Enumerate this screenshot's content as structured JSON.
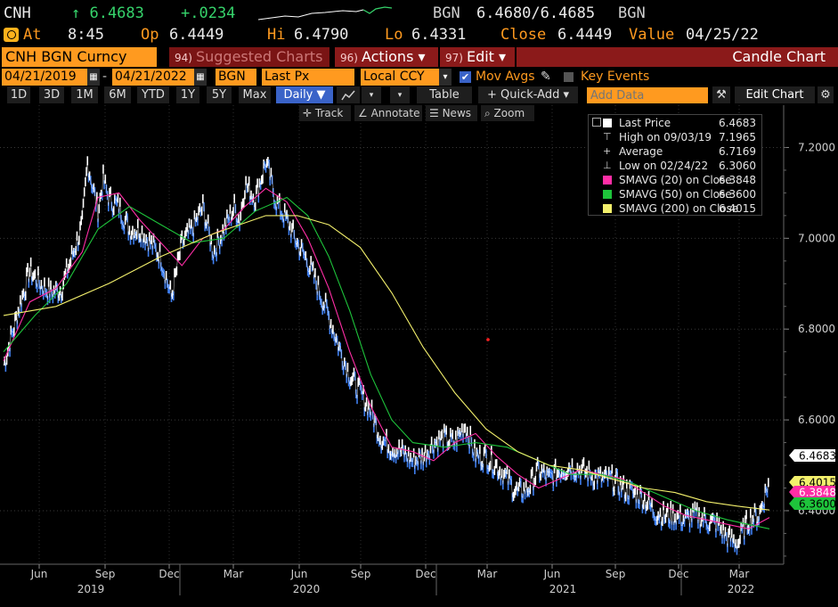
{
  "ticker": {
    "symbol": "CNH",
    "last": "↑ 6.4683",
    "change": "+.0234",
    "bid_ask_label": "BGN",
    "bid_ask": "6.4680/6.4685",
    "bid_ask_source": "BGN"
  },
  "quote": {
    "time_label": "At",
    "time": "8:45",
    "open_label": "Op",
    "open": "6.4449",
    "high_label": "Hi",
    "high": "6.4790",
    "low_label": "Lo",
    "low": "6.4331",
    "close_label": "Close",
    "close": "6.4449",
    "value_label": "Value",
    "value_date": "04/25/22"
  },
  "toolbar": {
    "security": "CNH BGN Curncy",
    "suggested_num": "94)",
    "suggested": "Suggested Charts",
    "actions_num": "96)",
    "actions": "Actions ▾",
    "edit_num": "97)",
    "edit": "Edit ▾",
    "chart_type": "Candle Chart"
  },
  "settings": {
    "start_date": "04/21/2019",
    "dash": "-",
    "end_date": "04/21/2022",
    "source": "BGN",
    "field": "Last Px",
    "currency": "Local CCY",
    "mov_avgs": "Mov Avgs",
    "key_events": "Key Events"
  },
  "periods": [
    "1D",
    "3D",
    "1M",
    "6M",
    "YTD",
    "1Y",
    "5Y",
    "Max"
  ],
  "frequency": "Daily ▼",
  "table_label": "Table",
  "quick_add": "+ Quick-Add ▾",
  "add_data_placeholder": "Add Data",
  "edit_chart": "Edit Chart",
  "tools": [
    "Track",
    "Annotate",
    "News",
    "Zoom"
  ],
  "colors": {
    "accent_orange": "#ff9a1f",
    "bar_red": "#8b1a1a",
    "price_white": "#ffffff",
    "price_blue": "#3f7ff0",
    "sma20": "#ff2ea6",
    "sma50": "#1ec43b",
    "sma200": "#f3f06c"
  },
  "legend": [
    {
      "label": "Last Price",
      "value": "6.4683",
      "swatch": "#ffffff"
    },
    {
      "label": "High on 09/03/19",
      "value": "7.1965",
      "glyph": "⊤"
    },
    {
      "label": "Average",
      "value": "6.7169",
      "glyph": "+"
    },
    {
      "label": "Low on 02/24/22",
      "value": "6.3060",
      "glyph": "⊥"
    },
    {
      "label": "SMAVG (20)  on Close",
      "value": "6.3848",
      "swatch": "#ff2ea6"
    },
    {
      "label": "SMAVG (50)  on Close",
      "value": "6.3600",
      "swatch": "#1ec43b"
    },
    {
      "label": "SMAVG (200)  on Close",
      "value": "6.4015",
      "swatch": "#f3f06c"
    }
  ],
  "chart_data": {
    "type": "line",
    "y_ticks": [
      "7.2000",
      "7.0000",
      "6.8000",
      "6.6000",
      "6.4000"
    ],
    "ylim": [
      6.29,
      7.25
    ],
    "x_months": [
      "Jun",
      "Sep",
      "Dec",
      "Mar",
      "Jun",
      "Sep",
      "Dec",
      "Mar",
      "Jun",
      "Sep",
      "Dec",
      "Mar"
    ],
    "x_years": [
      "2019",
      "2020",
      "2021",
      "2022"
    ],
    "last_value_labels": [
      {
        "text": "6.4683",
        "value": 6.4683,
        "bg": "#ffffff",
        "fg": "#000000"
      },
      {
        "text": "6.4015",
        "value": 6.4015,
        "bg": "#f3f06c",
        "fg": "#000000"
      },
      {
        "text": "6.3848",
        "value": 6.3848,
        "bg": "#ff2ea6",
        "fg": "#ffffff"
      },
      {
        "text": "6.3600",
        "value": 6.36,
        "bg": "#1ec43b",
        "fg": "#000000"
      }
    ],
    "series": [
      {
        "name": "Last Price",
        "color": "#ffffff",
        "x": [
          0,
          3,
          5,
          7,
          9,
          11,
          13,
          15,
          16,
          18,
          19,
          20,
          22,
          24,
          26,
          28,
          30,
          32,
          34,
          36,
          38,
          40,
          42,
          44,
          45,
          46,
          48,
          50,
          52,
          54,
          56,
          58,
          60,
          62,
          64,
          66,
          68,
          70,
          72,
          74,
          76,
          78,
          80,
          82,
          84,
          86,
          88,
          90,
          92,
          94,
          96,
          98,
          100,
          102,
          104,
          106,
          108,
          110,
          112,
          114,
          116,
          118,
          120,
          122,
          124,
          126,
          128,
          130,
          132,
          134,
          136,
          138,
          140,
          142,
          144,
          146
        ],
        "y": [
          6.72,
          6.85,
          6.93,
          6.9,
          6.88,
          6.89,
          6.96,
          7.03,
          7.17,
          7.06,
          7.13,
          7.09,
          7.07,
          7.02,
          7.02,
          6.99,
          6.96,
          6.87,
          6.99,
          7.02,
          7.07,
          6.97,
          7.02,
          7.07,
          7.04,
          7.12,
          7.09,
          7.17,
          7.08,
          7.04,
          6.99,
          6.95,
          6.89,
          6.83,
          6.76,
          6.7,
          6.66,
          6.62,
          6.56,
          6.54,
          6.53,
          6.51,
          6.52,
          6.55,
          6.56,
          6.55,
          6.59,
          6.52,
          6.52,
          6.5,
          6.47,
          6.44,
          6.45,
          6.49,
          6.47,
          6.49,
          6.5,
          6.49,
          6.48,
          6.47,
          6.47,
          6.45,
          6.44,
          6.43,
          6.4,
          6.39,
          6.39,
          6.38,
          6.39,
          6.38,
          6.37,
          6.34,
          6.33,
          6.38,
          6.39,
          6.47
        ]
      },
      {
        "name": "SMAVG (20)",
        "color": "#ff2ea6",
        "x": [
          0,
          5,
          10,
          15,
          18,
          22,
          26,
          30,
          34,
          38,
          42,
          46,
          50,
          54,
          58,
          62,
          66,
          70,
          74,
          78,
          82,
          86,
          90,
          94,
          98,
          102,
          106,
          110,
          114,
          118,
          122,
          126,
          130,
          134,
          138,
          142,
          146
        ],
        "y": [
          6.73,
          6.86,
          6.89,
          6.97,
          7.09,
          7.1,
          7.04,
          6.99,
          6.94,
          7.0,
          7.02,
          7.07,
          7.11,
          7.08,
          7.0,
          6.89,
          6.75,
          6.63,
          6.54,
          6.53,
          6.51,
          6.55,
          6.57,
          6.52,
          6.48,
          6.45,
          6.47,
          6.49,
          6.48,
          6.47,
          6.44,
          6.41,
          6.39,
          6.38,
          6.37,
          6.36,
          6.385
        ]
      },
      {
        "name": "SMAVG (50)",
        "color": "#1ec43b",
        "x": [
          0,
          6,
          12,
          18,
          24,
          30,
          36,
          42,
          48,
          54,
          58,
          62,
          66,
          70,
          74,
          78,
          84,
          90,
          96,
          102,
          108,
          114,
          120,
          126,
          132,
          138,
          142,
          146
        ],
        "y": [
          6.75,
          6.83,
          6.9,
          7.02,
          7.07,
          7.03,
          6.99,
          7.0,
          7.06,
          7.09,
          7.05,
          6.96,
          6.84,
          6.7,
          6.6,
          6.55,
          6.54,
          6.55,
          6.54,
          6.51,
          6.48,
          6.48,
          6.46,
          6.43,
          6.4,
          6.38,
          6.37,
          6.36
        ]
      },
      {
        "name": "SMAVG (200)",
        "color": "#f3f06c",
        "x": [
          0,
          10,
          20,
          30,
          40,
          50,
          56,
          62,
          68,
          74,
          80,
          86,
          92,
          98,
          104,
          110,
          116,
          122,
          128,
          134,
          140,
          146
        ],
        "y": [
          6.83,
          6.85,
          6.9,
          6.96,
          7.01,
          7.05,
          7.05,
          7.03,
          6.98,
          6.88,
          6.76,
          6.66,
          6.58,
          6.53,
          6.5,
          6.49,
          6.47,
          6.45,
          6.44,
          6.42,
          6.41,
          6.4015
        ]
      }
    ]
  }
}
